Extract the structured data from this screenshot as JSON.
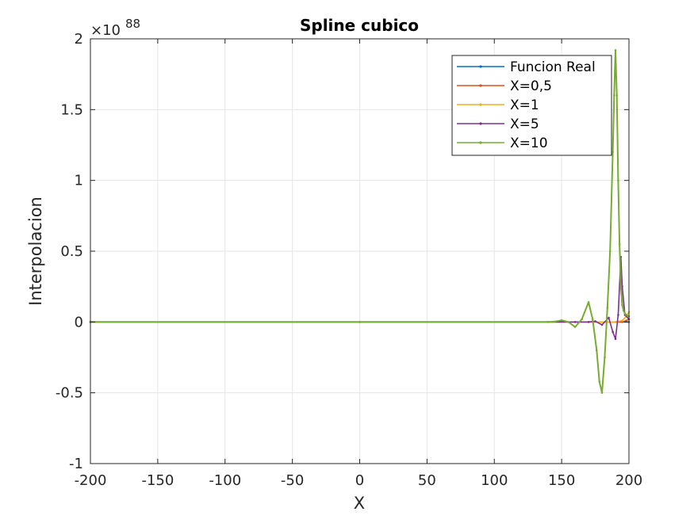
{
  "chart_data": {
    "type": "line",
    "title": "Spline cubico",
    "xlabel": "X",
    "ylabel": "Interpolacion",
    "exponent_label": "×10",
    "exponent_power": "88",
    "xlim": [
      -200,
      200
    ],
    "ylim": [
      -1,
      2
    ],
    "xticks": [
      -200,
      -150,
      -100,
      -50,
      0,
      50,
      100,
      150,
      200
    ],
    "xtick_labels": [
      "-200",
      "-150",
      "-100",
      "-50",
      "0",
      "50",
      "100",
      "150",
      "200"
    ],
    "yticks": [
      -1,
      -0.5,
      0,
      0.5,
      1,
      1.5,
      2
    ],
    "ytick_labels": [
      "-1",
      "-0.5",
      "0",
      "0.5",
      "1",
      "1.5",
      "2"
    ],
    "grid": true,
    "legend_position": "top-right",
    "series": [
      {
        "name": "Funcion Real",
        "color": "#0072bd",
        "x": [
          -200,
          0,
          200
        ],
        "y": [
          0,
          0,
          0
        ]
      },
      {
        "name": "X=0,5",
        "color": "#d95319",
        "x": [
          -200,
          0,
          195,
          198,
          200
        ],
        "y": [
          0,
          0,
          0,
          0.01,
          0.02
        ]
      },
      {
        "name": "X=1",
        "color": "#edb120",
        "x": [
          -200,
          0,
          190,
          195,
          198,
          200
        ],
        "y": [
          0,
          0,
          0,
          0.01,
          0.04,
          0.07
        ]
      },
      {
        "name": "X=5",
        "color": "#7e2f8e",
        "x": [
          -200,
          160,
          170,
          175,
          180,
          185,
          188,
          190,
          192,
          194,
          195,
          197,
          200
        ],
        "y": [
          0,
          0,
          0,
          0.005,
          -0.02,
          0.03,
          -0.07,
          -0.12,
          0.05,
          0.46,
          0.25,
          0.05,
          0.02
        ]
      },
      {
        "name": "X=10",
        "color": "#77ac30",
        "x": [
          -200,
          140,
          145,
          150,
          155,
          160,
          165,
          170,
          173,
          176,
          178,
          180,
          182,
          184,
          186,
          188,
          189,
          190,
          191,
          192,
          193,
          194,
          195,
          196,
          197,
          198,
          200
        ],
        "y": [
          0,
          0,
          0.003,
          0.012,
          0.0,
          -0.035,
          0.02,
          0.14,
          0.02,
          -0.2,
          -0.42,
          -0.5,
          -0.25,
          0.1,
          0.5,
          1.2,
          1.6,
          1.92,
          1.6,
          1.0,
          0.55,
          0.25,
          0.12,
          0.08,
          0.06,
          0.05,
          0.04
        ]
      }
    ]
  }
}
